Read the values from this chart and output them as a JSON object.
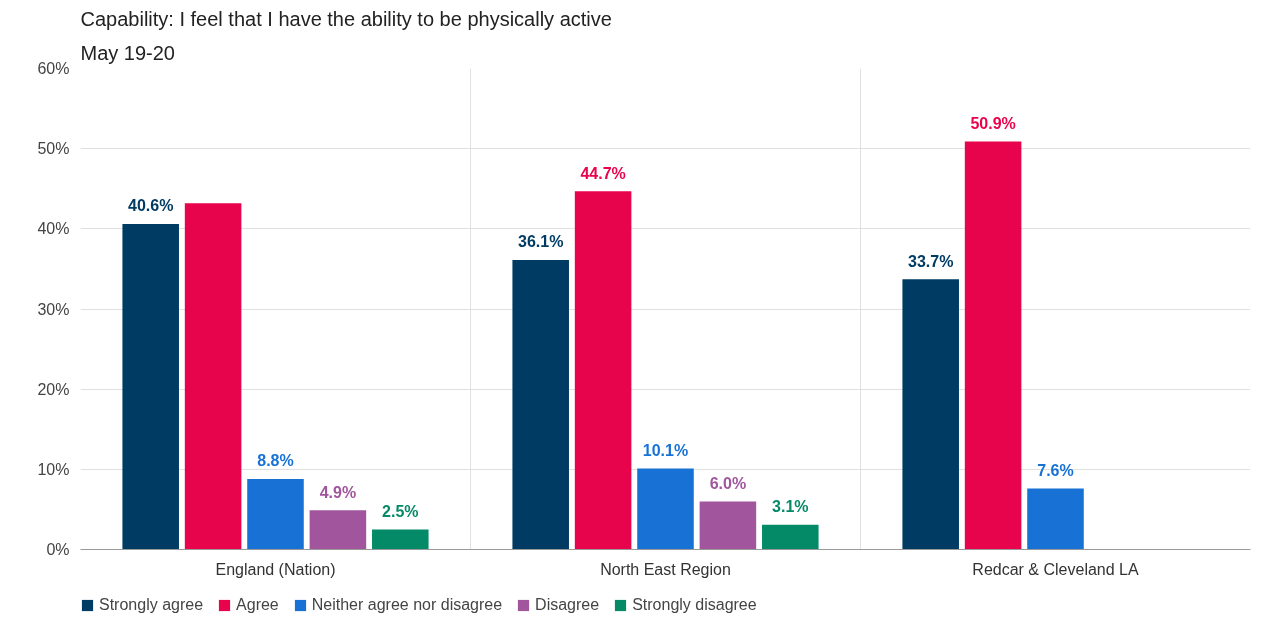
{
  "chart_data": {
    "type": "bar",
    "title": "Capability: I feel that I have the ability to be physically active",
    "subtitle": "May 19-20",
    "categories": [
      "England (Nation)",
      "North East Region",
      "Redcar & Cleveland LA"
    ],
    "series": [
      {
        "name": "Strongly agree",
        "color": "#003b64",
        "values": [
          40.6,
          36.1,
          33.7
        ],
        "value_labels": [
          "40.6%",
          "36.1%",
          "33.7%"
        ]
      },
      {
        "name": "Agree",
        "color": "#e8044c",
        "values": [
          43.2,
          44.7,
          50.9
        ],
        "value_labels": [
          null,
          "44.7%",
          "50.9%"
        ]
      },
      {
        "name": "Neither agree nor disagree",
        "color": "#1872d6",
        "values": [
          8.8,
          10.1,
          7.6
        ],
        "value_labels": [
          "8.8%",
          "10.1%",
          "7.6%"
        ]
      },
      {
        "name": "Disagree",
        "color": "#a0559c",
        "values": [
          4.9,
          6.0,
          null
        ],
        "value_labels": [
          "4.9%",
          "6.0%",
          null
        ]
      },
      {
        "name": "Strongly disagree",
        "color": "#058a68",
        "values": [
          2.5,
          3.1,
          null
        ],
        "value_labels": [
          "2.5%",
          "3.1%",
          null
        ]
      }
    ],
    "ylim": [
      0,
      60
    ],
    "yticks": [
      {
        "value": 0,
        "label": "0%"
      },
      {
        "value": 10,
        "label": "10%"
      },
      {
        "value": 20,
        "label": "20%"
      },
      {
        "value": 30,
        "label": "30%"
      },
      {
        "value": 40,
        "label": "40%"
      },
      {
        "value": 50,
        "label": "50%"
      },
      {
        "value": 60,
        "label": "60%"
      }
    ],
    "grid": true,
    "legend": "bottom"
  }
}
